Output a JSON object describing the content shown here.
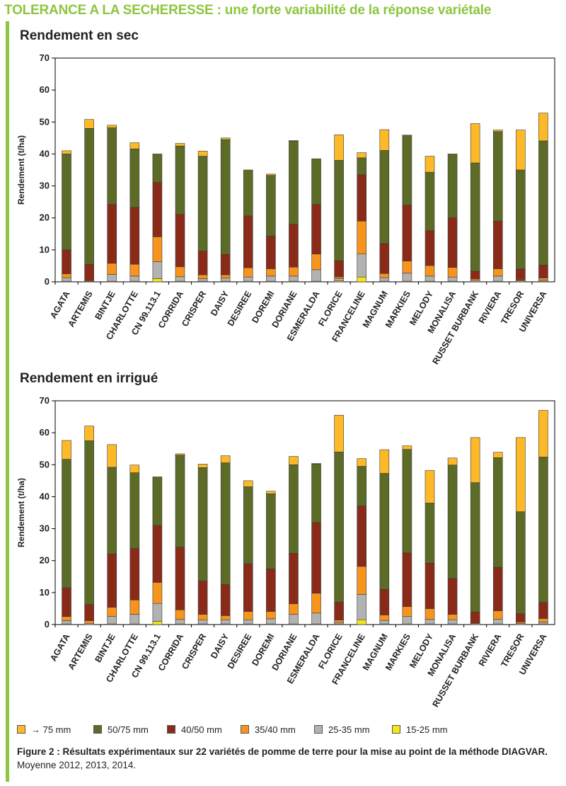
{
  "header": {
    "title": "TOLERANCE A LA SECHERESSE : une forte variabilité de la réponse variétale"
  },
  "legend": [
    {
      "label": "→ 75 mm",
      "color": "#fdb927"
    },
    {
      "label": "50/75 mm",
      "color": "#5c6b26"
    },
    {
      "label": "40/50 mm",
      "color": "#8a2b19"
    },
    {
      "label": "35/40 mm",
      "color": "#f7941d"
    },
    {
      "label": "25-35 mm",
      "color": "#b2b2b2"
    },
    {
      "label": "15-25 mm",
      "color": "#f2e51c"
    }
  ],
  "caption": {
    "bold": "Figure 2 : Résultats expérimentaux sur 22 variétés de pomme de terre pour la mise au point de la méthode DIAGVAR.",
    "normal": " Moyenne 2012, 2013, 2014."
  },
  "chart_data": [
    {
      "type": "bar",
      "stacked": true,
      "title": "Rendement en sec",
      "ylabel": "Rendement (t/ha)",
      "ylim": [
        0,
        70
      ],
      "yticks": [
        0,
        10,
        20,
        30,
        40,
        50,
        60,
        70
      ],
      "grid": false,
      "categories": [
        "AGATA",
        "ARTEMIS",
        "BINTJE",
        "CHARLOTTE",
        "CN 99.113.1",
        "CORRIDA",
        "CRISPER",
        "DAISY",
        "DESIREE",
        "DOREMI",
        "DORIANE",
        "ESMERALDA",
        "FLORICE",
        "FRANCELINE",
        "MAGNUM",
        "MARKIES",
        "MELODY",
        "MONALISA",
        "RUSSET BURBANK",
        "RIVIERA",
        "TRESOR",
        "UNIVERSA"
      ],
      "series": [
        {
          "name": "15-25 mm",
          "color": "#f2e51c",
          "values": [
            0.2,
            0,
            0.2,
            0.2,
            1.0,
            0.2,
            0.2,
            0.2,
            0.2,
            0.2,
            0.2,
            0.2,
            0.3,
            1.5,
            0.2,
            0.2,
            0.2,
            0.2,
            0,
            0.2,
            0,
            0.2
          ]
        },
        {
          "name": "25-35 mm",
          "color": "#b2b2b2",
          "values": [
            1.1,
            0.2,
            2.1,
            1.6,
            5.3,
            1.4,
            0.8,
            1.0,
            1.3,
            1.6,
            1.6,
            3.6,
            0.7,
            7.2,
            1.1,
            2.5,
            1.6,
            1.3,
            0.4,
            1.6,
            0.3,
            0.4
          ]
        },
        {
          "name": "35/40 mm",
          "color": "#f7941d",
          "values": [
            1.2,
            0.2,
            3.5,
            3.7,
            7.8,
            3.1,
            1.2,
            1.0,
            2.9,
            2.3,
            2.8,
            4.9,
            0.5,
            10.3,
            1.3,
            3.8,
            3.3,
            3.0,
            0.5,
            2.3,
            0.3,
            0.6
          ]
        },
        {
          "name": "40/50 mm",
          "color": "#8a2b19",
          "values": [
            7.5,
            5.1,
            18.4,
            17.8,
            17.0,
            16.4,
            7.4,
            6.4,
            16.2,
            10.2,
            13.4,
            15.5,
            5.1,
            14.5,
            9.4,
            17.5,
            10.9,
            15.5,
            2.4,
            14.9,
            3.4,
            4.0
          ]
        },
        {
          "name": "50/75 mm",
          "color": "#5c6b26",
          "values": [
            30.0,
            42.5,
            24.0,
            18.3,
            8.9,
            21.4,
            29.7,
            35.9,
            14.4,
            19.0,
            26.0,
            14.3,
            31.4,
            5.3,
            29.1,
            21.9,
            18.3,
            20.0,
            33.9,
            28.0,
            31.0,
            38.9
          ]
        },
        {
          "name": "→ 75 mm",
          "color": "#fdb927",
          "values": [
            1.0,
            2.8,
            0.8,
            1.9,
            0,
            0.8,
            1.6,
            0.5,
            0,
            0.4,
            0.2,
            0,
            8.0,
            1.6,
            6.5,
            0,
            5.0,
            0,
            12.3,
            0.5,
            12.5,
            8.7
          ]
        }
      ]
    },
    {
      "type": "bar",
      "stacked": true,
      "title": "Rendement en irrigué",
      "ylabel": "Rendement (t/ha)",
      "ylim": [
        0,
        70
      ],
      "yticks": [
        0,
        10,
        20,
        30,
        40,
        50,
        60,
        70
      ],
      "grid": false,
      "categories": [
        "AGATA",
        "ARTEMIS",
        "BINTJE",
        "CHARLOTTE",
        "CN 99.113.1",
        "CORRIDA",
        "CRISPER",
        "DAISY",
        "DESIREE",
        "DOREMI",
        "DORIANE",
        "ESMERALDA",
        "FLORICE",
        "FRANCELINE",
        "MAGNUM",
        "MARKIES",
        "MELODY",
        "MONALISA",
        "RUSSET BURBANK",
        "RIVIERA",
        "TRESOR",
        "UNIVERSA"
      ],
      "series": [
        {
          "name": "15-25 mm",
          "color": "#f2e51c",
          "values": [
            0.2,
            0,
            0.2,
            0.2,
            1.0,
            0.2,
            0.2,
            0.2,
            0.2,
            0.2,
            0.2,
            0.2,
            0.2,
            1.5,
            0.2,
            0.2,
            0.2,
            0.2,
            0,
            0.2,
            0,
            0.2
          ]
        },
        {
          "name": "25-35 mm",
          "color": "#b2b2b2",
          "values": [
            1.0,
            0.4,
            2.4,
            3.0,
            5.6,
            1.4,
            1.2,
            1.3,
            1.3,
            1.6,
            3.0,
            3.4,
            0.5,
            7.9,
            1.1,
            2.3,
            1.4,
            1.3,
            0.3,
            1.5,
            0.3,
            0.6
          ]
        },
        {
          "name": "35/40 mm",
          "color": "#f7941d",
          "values": [
            1.3,
            0.8,
            2.8,
            4.5,
            6.6,
            3.0,
            1.8,
            1.3,
            2.6,
            2.3,
            3.3,
            6.2,
            0.7,
            8.8,
            1.7,
            3.1,
            3.4,
            1.7,
            0.2,
            2.6,
            0.5,
            1.1
          ]
        },
        {
          "name": "40/50 mm",
          "color": "#8a2b19",
          "values": [
            9.0,
            5.1,
            16.7,
            16.1,
            17.8,
            19.6,
            10.4,
            9.7,
            14.9,
            13.3,
            15.8,
            22.1,
            5.6,
            18.9,
            8.0,
            16.8,
            14.2,
            11.2,
            3.4,
            13.6,
            2.6,
            5.0
          ]
        },
        {
          "name": "50/75 mm",
          "color": "#5c6b26",
          "values": [
            40.2,
            51.2,
            27.1,
            23.7,
            15.2,
            28.8,
            35.5,
            38.1,
            24.1,
            23.5,
            27.7,
            18.3,
            47.0,
            12.4,
            36.3,
            32.4,
            18.8,
            35.5,
            40.5,
            34.3,
            31.9,
            45.5
          ]
        },
        {
          "name": "→ 75 mm",
          "color": "#fdb927",
          "values": [
            5.9,
            4.6,
            7.1,
            2.4,
            0,
            0.4,
            1.1,
            2.2,
            1.9,
            0.8,
            2.6,
            0.2,
            11.5,
            2.4,
            7.4,
            1.1,
            10.2,
            2.2,
            14.1,
            1.7,
            23.2,
            14.6
          ]
        }
      ]
    }
  ]
}
